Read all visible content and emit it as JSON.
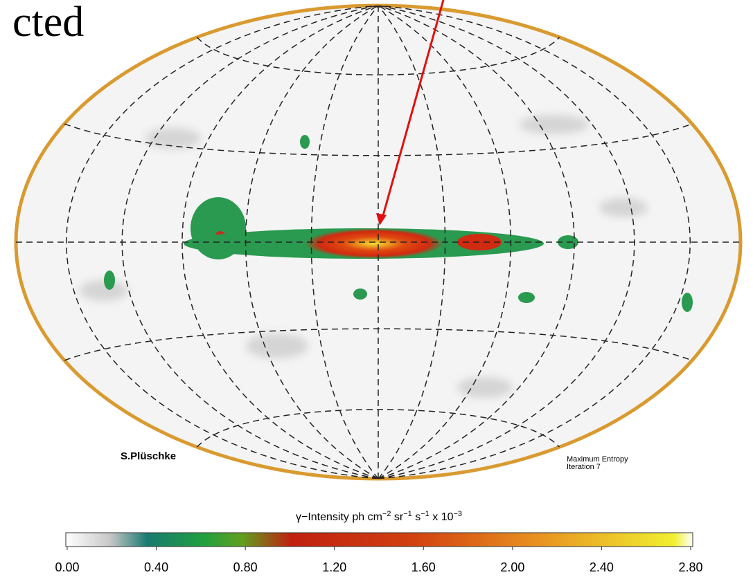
{
  "header": {
    "fragment": "cted"
  },
  "map": {
    "credit": "S.Plüschke",
    "method": [
      "Maximum Entropy",
      "Iteration  7"
    ]
  },
  "colorbar": {
    "label_parts": [
      "γ−Intensity ph cm",
      "−2",
      " sr",
      "−1",
      " s",
      "−1",
      "   x 10",
      "−3"
    ],
    "range": [
      0,
      2.8
    ],
    "ticks": [
      {
        "value": 0,
        "label": "0.00"
      },
      {
        "value": 0.4,
        "label": "0.40"
      },
      {
        "value": 0.8,
        "label": "0.80"
      },
      {
        "value": 1.2,
        "label": "1.20"
      },
      {
        "value": 1.6,
        "label": "1.60"
      },
      {
        "value": 2,
        "label": "2.00"
      },
      {
        "value": 2.4,
        "label": "2.40"
      },
      {
        "value": 2.8,
        "label": "2.80"
      }
    ]
  }
}
